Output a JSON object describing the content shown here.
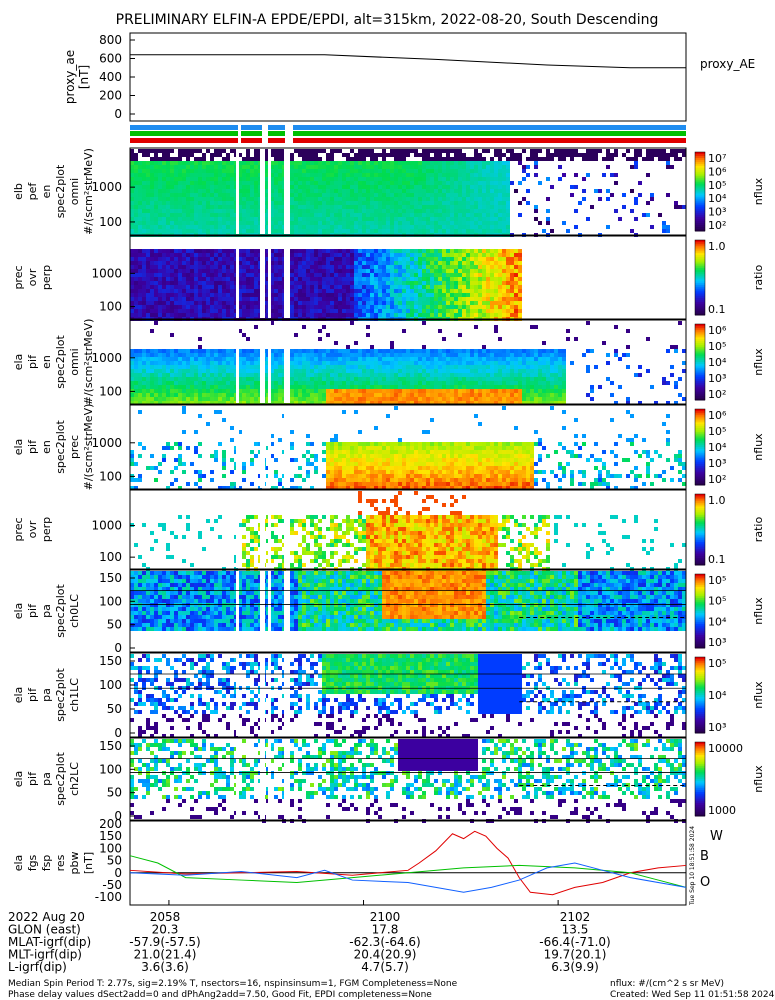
{
  "title": "PRELIMINARY ELFIN-A EPDE/EPDI, alt=315km, 2022-08-20, South Descending",
  "colors": {
    "red": "#e00000",
    "green": "#00c000",
    "blue": "#1060ff",
    "black": "#000000"
  },
  "panels": [
    {
      "id": "proxy_ae",
      "ylabel": [
        "proxy_ae",
        "[nT]"
      ],
      "ticks": [
        "800",
        "600",
        "400",
        "200",
        "0"
      ],
      "right_label": "proxy_AE",
      "type": "line"
    },
    {
      "id": "elb_pef_en_spec2plot_omni",
      "ylabel": [
        "elb",
        "pef",
        "en",
        "spec2plot",
        "omni",
        "#/(scm²strMeV)"
      ],
      "ticks": [
        "1000",
        "100"
      ],
      "cbar_ticks": [
        "10⁷",
        "10⁶",
        "10⁵",
        "10⁴",
        "10³",
        "10²"
      ],
      "cbar_label": "nflux"
    },
    {
      "id": "elb_prec_ovr_perp",
      "ylabel": [
        "prec",
        "ovr",
        "perp"
      ],
      "ticks": [
        "1000",
        "100"
      ],
      "cbar_ticks": [
        "1.0",
        "0.1"
      ],
      "cbar_label": "ratio"
    },
    {
      "id": "ela_pif_en_spec2plot_omni",
      "ylabel": [
        "ela",
        "pif",
        "en",
        "spec2plot",
        "omni",
        "#/(scm²strMeV)"
      ],
      "ticks": [
        "1000",
        "100"
      ],
      "cbar_ticks": [
        "10⁶",
        "10⁵",
        "10⁴",
        "10³",
        "10²"
      ],
      "cbar_label": "nflux"
    },
    {
      "id": "ela_pif_en_spec2plot_prec",
      "ylabel": [
        "ela",
        "pif",
        "en",
        "spec2plot",
        "prec",
        "#/(scm²strMeV)"
      ],
      "ticks": [
        "1000",
        "100"
      ],
      "cbar_ticks": [
        "10⁶",
        "10⁵",
        "10⁴",
        "10³",
        "10²"
      ],
      "cbar_label": "nflux"
    },
    {
      "id": "ela_prec_ovr_perp",
      "ylabel": [
        "prec",
        "ovr",
        "perp"
      ],
      "ticks": [
        "1000",
        "100"
      ],
      "cbar_ticks": [
        "1.0",
        "0.1"
      ],
      "cbar_label": "ratio"
    },
    {
      "id": "ela_pif_pa_spec2plot_ch0LC",
      "ylabel": [
        "ela",
        "pif",
        "pa",
        "spec2plot",
        "ch0LC"
      ],
      "ticks": [
        "150",
        "100",
        "50",
        "0"
      ],
      "cbar_ticks": [
        "10⁵",
        "10⁵",
        "10⁴",
        "10³"
      ],
      "cbar_label": "nflux"
    },
    {
      "id": "ela_pif_pa_spec2plot_ch1LC",
      "ylabel": [
        "ela",
        "pif",
        "pa",
        "spec2plot",
        "ch1LC"
      ],
      "ticks": [
        "150",
        "100",
        "50",
        "0"
      ],
      "cbar_ticks": [
        "10⁵",
        "10⁴",
        "10³"
      ],
      "cbar_label": "nflux"
    },
    {
      "id": "ela_pif_pa_spec2plot_ch2LC",
      "ylabel": [
        "ela",
        "pif",
        "pa",
        "spec2plot",
        "ch2LC"
      ],
      "ticks": [
        "150",
        "100",
        "50",
        "0"
      ],
      "cbar_ticks": [
        "10000",
        "1000"
      ],
      "cbar_label": "nflux"
    },
    {
      "id": "ela_fgs_fsp_res_pbw",
      "ylabel": [
        "ela",
        "fgs",
        "fsp",
        "res",
        "pbw",
        "[nT]"
      ],
      "ticks": [
        "200",
        "150",
        "100",
        "50",
        "0",
        "-50",
        "-100"
      ],
      "right_labels": [
        "W",
        "B",
        "O"
      ],
      "type": "line"
    }
  ],
  "xaxis": {
    "rows": [
      {
        "label": "2022 Aug 20",
        "vals": [
          "2058",
          "2100",
          "2102"
        ]
      },
      {
        "label": "GLON (east)",
        "vals": [
          "20.3",
          "17.8",
          "13.5"
        ]
      },
      {
        "label": "MLAT-igrf(dip)",
        "vals": [
          "-57.9(-57.5)",
          "-62.3(-64.6)",
          "-66.4(-71.0)"
        ]
      },
      {
        "label": "MLT-igrf(dip)",
        "vals": [
          "21.0(21.4)",
          "20.4(20.9)",
          "19.7(20.1)"
        ]
      },
      {
        "label": "L-igrf(dip)",
        "vals": [
          "3.6(3.6)",
          "4.7(5.7)",
          "6.3(9.9)"
        ]
      }
    ]
  },
  "footer": {
    "line1_left": "Median Spin Period T: 2.77s, sig=2.19% T, nsectors=16, nspinsinsum=1, FGM Completeness=None",
    "line2_left": "Phase delay values dSect2add=0 and dPhAng2add=7.50, Good Fit, EPDI completeness=None",
    "line1_right": "nflux: #/(cm^2 s sr MeV)",
    "line2_right": "Created: Wed Sep 11 01:51:58 2024",
    "side_stamp": "Tue Sep 10 18:51:58 2024"
  },
  "chart_data": {
    "type": "line",
    "proxy_ae": {
      "ylim": [
        0,
        800
      ],
      "x": [
        0,
        0.35,
        0.55,
        0.75,
        0.9,
        1.0
      ],
      "values": [
        640,
        640,
        590,
        530,
        500,
        500
      ]
    },
    "fgs_residuals": {
      "ylim": [
        -120,
        200
      ],
      "series": [
        {
          "name": "W",
          "color": "#e00000",
          "x": [
            0,
            0.1,
            0.2,
            0.3,
            0.4,
            0.5,
            0.52,
            0.55,
            0.58,
            0.6,
            0.62,
            0.64,
            0.66,
            0.68,
            0.7,
            0.72,
            0.76,
            0.8,
            0.85,
            0.9,
            0.95,
            1.0
          ],
          "values": [
            10,
            -5,
            0,
            5,
            -10,
            10,
            40,
            90,
            160,
            140,
            170,
            150,
            100,
            60,
            -20,
            -80,
            -90,
            -60,
            -40,
            0,
            20,
            30
          ]
        },
        {
          "name": "B",
          "color": "#00c000",
          "x": [
            0,
            0.05,
            0.1,
            0.2,
            0.3,
            0.4,
            0.5,
            0.6,
            0.7,
            0.8,
            0.9,
            0.95,
            1.0
          ],
          "values": [
            70,
            40,
            -20,
            -30,
            -40,
            -20,
            0,
            20,
            30,
            20,
            0,
            -30,
            -60
          ]
        },
        {
          "name": "O",
          "color": "#1060ff",
          "x": [
            0,
            0.1,
            0.2,
            0.3,
            0.35,
            0.4,
            0.5,
            0.55,
            0.6,
            0.65,
            0.7,
            0.75,
            0.8,
            0.85,
            0.9,
            1.0
          ],
          "values": [
            0,
            -10,
            5,
            -20,
            10,
            -30,
            -40,
            -60,
            -80,
            -60,
            -30,
            20,
            40,
            10,
            -20,
            -60
          ]
        }
      ]
    }
  }
}
